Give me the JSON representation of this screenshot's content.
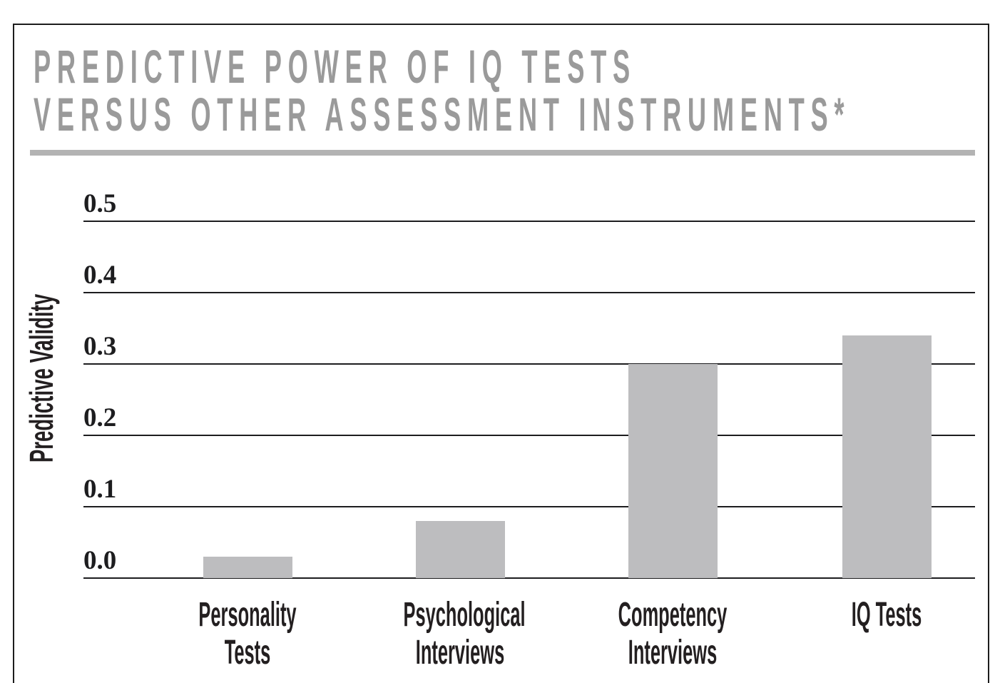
{
  "figure": {
    "title_line1": "PREDICTIVE POWER OF IQ TESTS",
    "title_line2": "VERSUS OTHER ASSESSMENT INSTRUMENTS*",
    "title_color": "#9a9a9a",
    "rule_color": "#b3b3b3"
  },
  "chart_data": {
    "type": "bar",
    "title": "PREDICTIVE POWER OF IQ TESTS VERSUS OTHER ASSESSMENT INSTRUMENTS*",
    "categories": [
      "Personality Tests",
      "Psychological\nInterviews",
      "Competency\nInterviews",
      "IQ Tests"
    ],
    "values": [
      0.03,
      0.08,
      0.3,
      0.34
    ],
    "xlabel": "",
    "ylabel": "Predictive Validity",
    "ylim": [
      0.0,
      0.5
    ],
    "ytick_labels": [
      "0.5",
      "0.4",
      "0.3",
      "0.2",
      "0.1",
      "0.0"
    ],
    "ytick_interval": 0.1,
    "grid": "horizontal gridlines only, one per tick",
    "legend_position": "none",
    "bar_color": "#bdbdbf",
    "gridline_color": "#1d1d1f",
    "text_color": "#231f20"
  }
}
